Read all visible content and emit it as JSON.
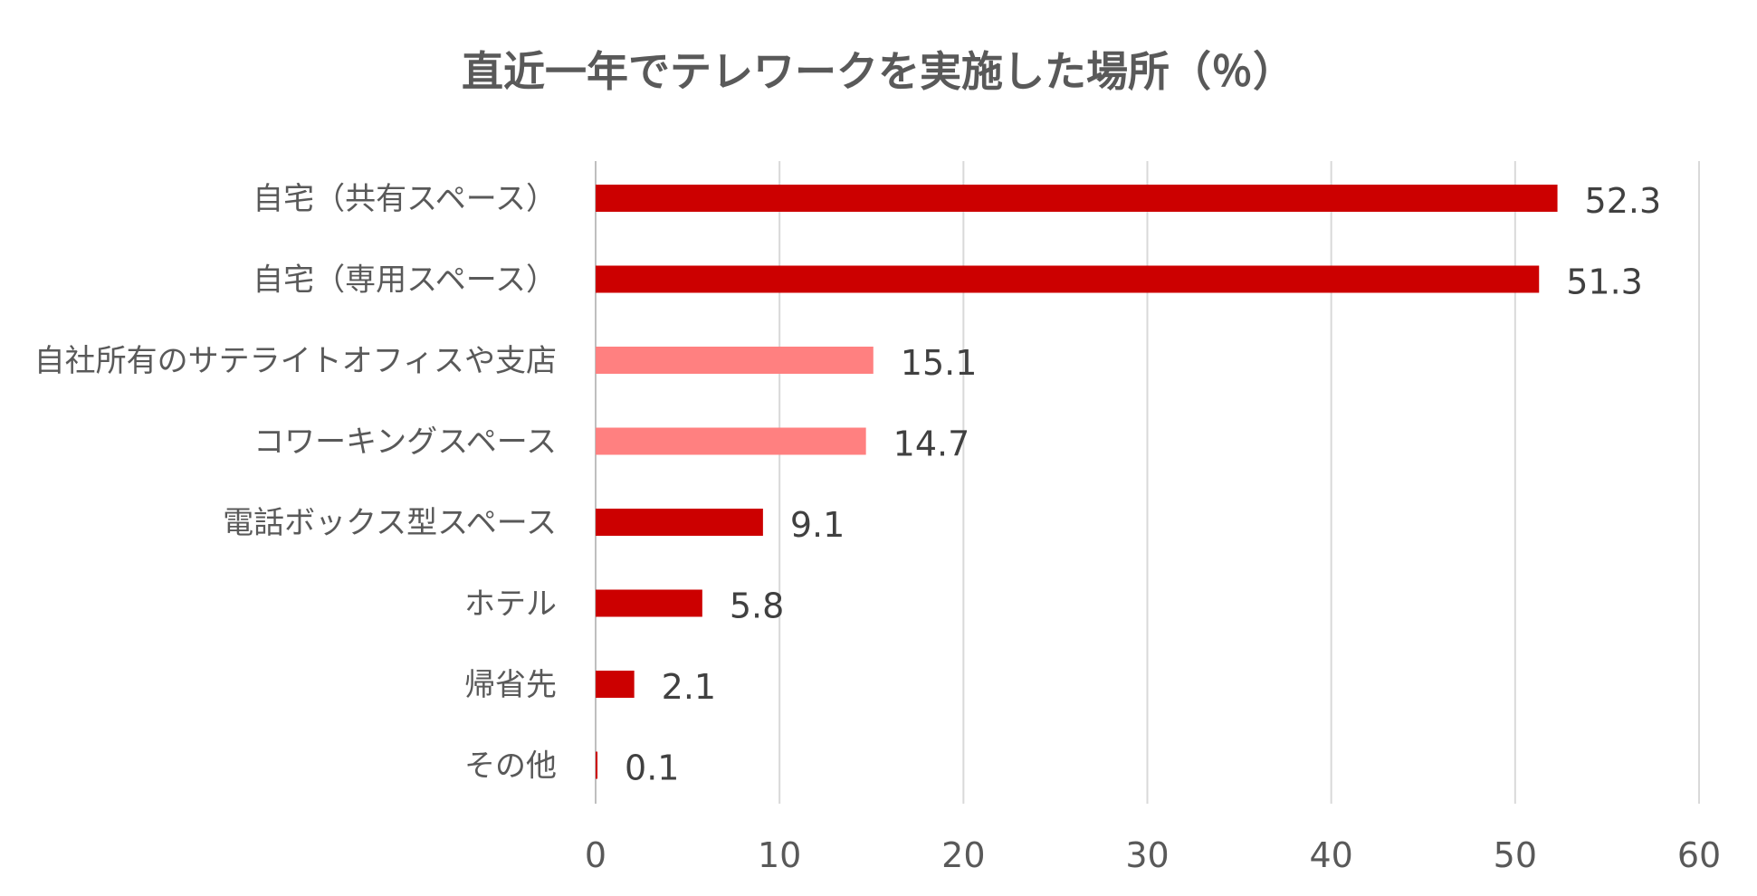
{
  "chart_data": {
    "type": "bar",
    "orientation": "horizontal",
    "title": "直近一年でテレワークを実施した場所（％）",
    "categories": [
      "自宅（共有スペース）",
      "自宅（専用スペース）",
      "自社所有のサテライトオフィスや支店",
      "コワーキングスペース",
      "電話ボックス型スペース",
      "ホテル",
      "帰省先",
      "その他"
    ],
    "values": [
      52.3,
      51.3,
      15.1,
      14.7,
      9.1,
      5.8,
      2.1,
      0.1
    ],
    "value_labels": [
      "52.3",
      "51.3",
      "15.1",
      "14.7",
      "9.1",
      "5.8",
      "2.1",
      "0.1"
    ],
    "bar_colors": [
      "#cc0000",
      "#cc0000",
      "#ff8080",
      "#ff8080",
      "#cc0000",
      "#cc0000",
      "#cc0000",
      "#cc0000"
    ],
    "xlim": [
      0,
      60
    ],
    "xticks": [
      0,
      10,
      20,
      30,
      40,
      50,
      60
    ],
    "xtick_labels": [
      "0",
      "10",
      "20",
      "30",
      "40",
      "50",
      "60"
    ],
    "grid": true,
    "legend": "none",
    "xlabel": "",
    "ylabel": ""
  }
}
